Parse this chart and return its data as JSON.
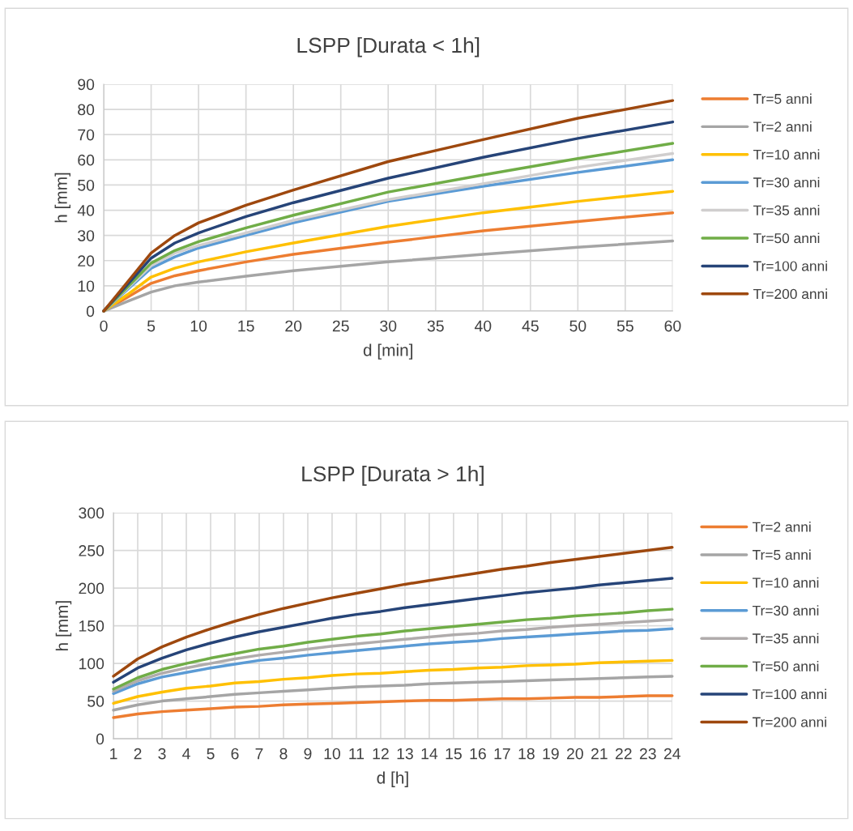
{
  "chart_data": [
    {
      "type": "line",
      "title": "LSPP [Durata < 1h]",
      "xlabel": "d [min]",
      "ylabel": "h [mm]",
      "x": [
        0,
        2.5,
        5,
        7.5,
        10,
        15,
        20,
        30,
        40,
        50,
        60
      ],
      "xlim": [
        0,
        60
      ],
      "xticks": [
        0,
        5,
        10,
        15,
        20,
        25,
        30,
        35,
        40,
        45,
        50,
        55,
        60
      ],
      "ylim": [
        0,
        90
      ],
      "yticks": [
        0,
        10,
        20,
        30,
        40,
        50,
        60,
        70,
        80,
        90
      ],
      "grid": true,
      "legend": "right",
      "marker": "none",
      "line_style": "solid",
      "series": [
        {
          "name": "Tr=5 anni",
          "color": "#ed7d31",
          "values": [
            0,
            5.5,
            11,
            14,
            16,
            19.5,
            22.5,
            27.3,
            31.8,
            35.5,
            39
          ]
        },
        {
          "name": "Tr=2 anni",
          "color": "#a5a5a5",
          "values": [
            0,
            3.8,
            7.5,
            10,
            11.5,
            13.8,
            16,
            19.5,
            22.5,
            25.3,
            27.8
          ]
        },
        {
          "name": "Tr=10 anni",
          "color": "#ffc000",
          "values": [
            0,
            6.5,
            13.5,
            17,
            19.5,
            23.5,
            27,
            33.6,
            39,
            43.5,
            47.5
          ]
        },
        {
          "name": "Tr=30 anni",
          "color": "#5b9bd5",
          "values": [
            0,
            8.5,
            17,
            21.5,
            25,
            30,
            35,
            43.5,
            49.5,
            55,
            60
          ]
        },
        {
          "name": "Tr=35 anni",
          "color": "#d0cece",
          "values": [
            0,
            9,
            18,
            23,
            26,
            31,
            36,
            44.2,
            50.5,
            57,
            62.5
          ]
        },
        {
          "name": "Tr=50 anni",
          "color": "#70ad47",
          "values": [
            0,
            9.5,
            19,
            24,
            27.5,
            33,
            38,
            47.2,
            54,
            60.5,
            66.5
          ]
        },
        {
          "name": "Tr=100 anni",
          "color": "#264478",
          "values": [
            0,
            10.5,
            21,
            27,
            31,
            37.5,
            43,
            52.7,
            61,
            68.5,
            75
          ]
        },
        {
          "name": "Tr=200 anni",
          "color": "#9e480e",
          "values": [
            0,
            11.5,
            23,
            30,
            35,
            42,
            48,
            59.3,
            68,
            76.5,
            83.5
          ]
        }
      ]
    },
    {
      "type": "line",
      "title": "LSPP [Durata > 1h]",
      "xlabel": "d [h]",
      "ylabel": "h [mm]",
      "categories": [
        "1",
        "2",
        "3",
        "4",
        "5",
        "6",
        "7",
        "8",
        "9",
        "10",
        "11",
        "12",
        "13",
        "14",
        "15",
        "16",
        "17",
        "18",
        "19",
        "20",
        "21",
        "22",
        "23",
        "24"
      ],
      "ylim": [
        0,
        300
      ],
      "yticks": [
        0,
        50,
        100,
        150,
        200,
        250,
        300
      ],
      "grid": true,
      "legend": "right",
      "marker": "none",
      "line_style": "solid",
      "series": [
        {
          "name": "Tr=2 anni",
          "color": "#ed7d31",
          "values": [
            28,
            33,
            36,
            38,
            40,
            42,
            43,
            45,
            46,
            47,
            48,
            49,
            50,
            51,
            51,
            52,
            53,
            53,
            54,
            55,
            55,
            56,
            57,
            57
          ]
        },
        {
          "name": "Tr=5 anni",
          "color": "#a5a5a5",
          "values": [
            38,
            45,
            50,
            53,
            56,
            59,
            61,
            63,
            65,
            67,
            69,
            70,
            71,
            73,
            74,
            75,
            76,
            77,
            78,
            79,
            80,
            81,
            82,
            83
          ]
        },
        {
          "name": "Tr=10 anni",
          "color": "#ffc000",
          "values": [
            47,
            56,
            62,
            67,
            70,
            74,
            76,
            79,
            81,
            84,
            86,
            87,
            89,
            91,
            92,
            94,
            95,
            97,
            98,
            99,
            101,
            102,
            103,
            104
          ]
        },
        {
          "name": "Tr=30 anni",
          "color": "#5b9bd5",
          "values": [
            60,
            73,
            82,
            88,
            94,
            99,
            104,
            107,
            111,
            114,
            117,
            120,
            123,
            126,
            128,
            130,
            133,
            135,
            137,
            139,
            141,
            143,
            144,
            146
          ]
        },
        {
          "name": "Tr=35 anni",
          "color": "#b0acac",
          "values": [
            63,
            77,
            87,
            94,
            100,
            106,
            111,
            115,
            119,
            123,
            126,
            129,
            132,
            135,
            138,
            140,
            143,
            145,
            148,
            150,
            152,
            154,
            156,
            158
          ]
        },
        {
          "name": "Tr=50 anni",
          "color": "#70ad47",
          "values": [
            66,
            81,
            92,
            100,
            107,
            113,
            119,
            123,
            128,
            132,
            136,
            139,
            143,
            146,
            149,
            152,
            155,
            158,
            160,
            163,
            165,
            167,
            170,
            172
          ]
        },
        {
          "name": "Tr=100 anni",
          "color": "#264478",
          "values": [
            75,
            94,
            107,
            118,
            127,
            135,
            142,
            148,
            154,
            160,
            165,
            169,
            174,
            178,
            182,
            186,
            190,
            194,
            197,
            200,
            204,
            207,
            210,
            213
          ]
        },
        {
          "name": "Tr=200 anni",
          "color": "#9e480e",
          "values": [
            83,
            106,
            122,
            135,
            146,
            156,
            165,
            173,
            180,
            187,
            193,
            199,
            205,
            210,
            215,
            220,
            225,
            229,
            234,
            238,
            242,
            246,
            250,
            254
          ]
        }
      ]
    }
  ]
}
